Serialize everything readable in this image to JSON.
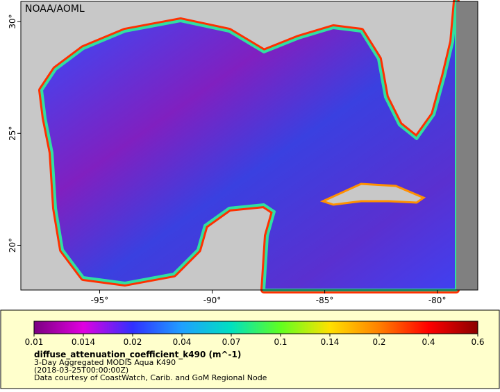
{
  "map": {
    "credit": "NOAA/AOML",
    "lon_range": [
      -98.5,
      -78.2
    ],
    "lat_range": [
      18,
      30.9
    ],
    "xticks": [
      {
        "value": -95,
        "label": "-95°"
      },
      {
        "value": -90,
        "label": "-90°"
      },
      {
        "value": -85,
        "label": "-85°"
      },
      {
        "value": -80,
        "label": "-80°"
      }
    ],
    "yticks": [
      {
        "value": 20,
        "label": "20°"
      },
      {
        "value": 25,
        "label": "25°"
      },
      {
        "value": 30,
        "label": "30°"
      }
    ],
    "land_color": "#c8c8c8",
    "nodata_color": "#808080"
  },
  "legend": {
    "colorbar": {
      "scale": "log",
      "ticks": [
        0.01,
        0.014,
        0.02,
        0.04,
        0.07,
        0.1,
        0.14,
        0.2,
        0.4,
        0.6
      ],
      "colors": [
        "#7a0080",
        "#e000e0",
        "#3030ff",
        "#20a0ff",
        "#00e0c0",
        "#60ff20",
        "#ffe000",
        "#ff8000",
        "#ff0000",
        "#8b0000"
      ]
    },
    "variable": "diffuse_attenuation_coefficient_k490 (m^-1)",
    "lines": [
      "3-Day Aggregated MODIS Aqua K490",
      "(2018-03-25T00:00:00Z)",
      "Data courtesy of CoastWatch, Carib. and GoM Regional Node"
    ]
  }
}
